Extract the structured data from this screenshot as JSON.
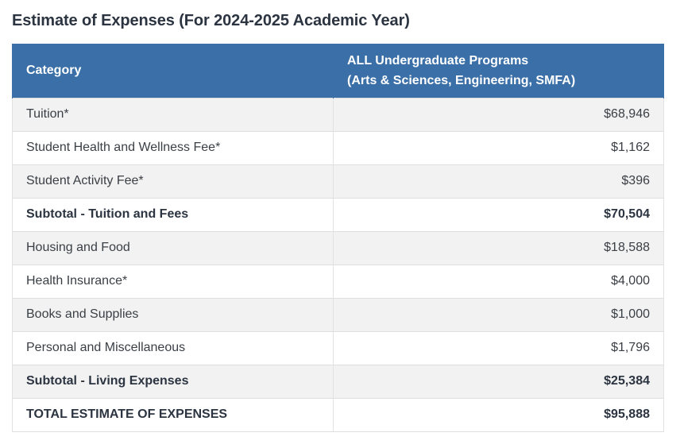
{
  "title": "Estimate of Expenses (For 2024-2025 Academic Year)",
  "table": {
    "header": {
      "category": "Category",
      "programs_line1": "ALL Undergraduate Programs",
      "programs_line2": "(Arts & Sciences, Engineering, SMFA)"
    },
    "rows": [
      {
        "label": "Tuition*",
        "amount": "$68,946",
        "bold": false
      },
      {
        "label": "Student Health and Wellness Fee*",
        "amount": "$1,162",
        "bold": false
      },
      {
        "label": "Student Activity Fee*",
        "amount": "$396",
        "bold": false
      },
      {
        "label": "Subtotal - Tuition and Fees",
        "amount": "$70,504",
        "bold": true
      },
      {
        "label": "Housing and Food",
        "amount": "$18,588",
        "bold": false
      },
      {
        "label": "Health Insurance*",
        "amount": "$4,000",
        "bold": false
      },
      {
        "label": "Books and Supplies",
        "amount": "$1,000",
        "bold": false
      },
      {
        "label": "Personal and Miscellaneous",
        "amount": "$1,796",
        "bold": false
      },
      {
        "label": "Subtotal - Living Expenses",
        "amount": "$25,384",
        "bold": true
      },
      {
        "label": "TOTAL ESTIMATE OF EXPENSES",
        "amount": "$95,888",
        "bold": true
      }
    ]
  },
  "colors": {
    "header_bg": "#3a6fa8",
    "title_text": "#2b3440",
    "row_stripe": "#f2f2f2"
  }
}
